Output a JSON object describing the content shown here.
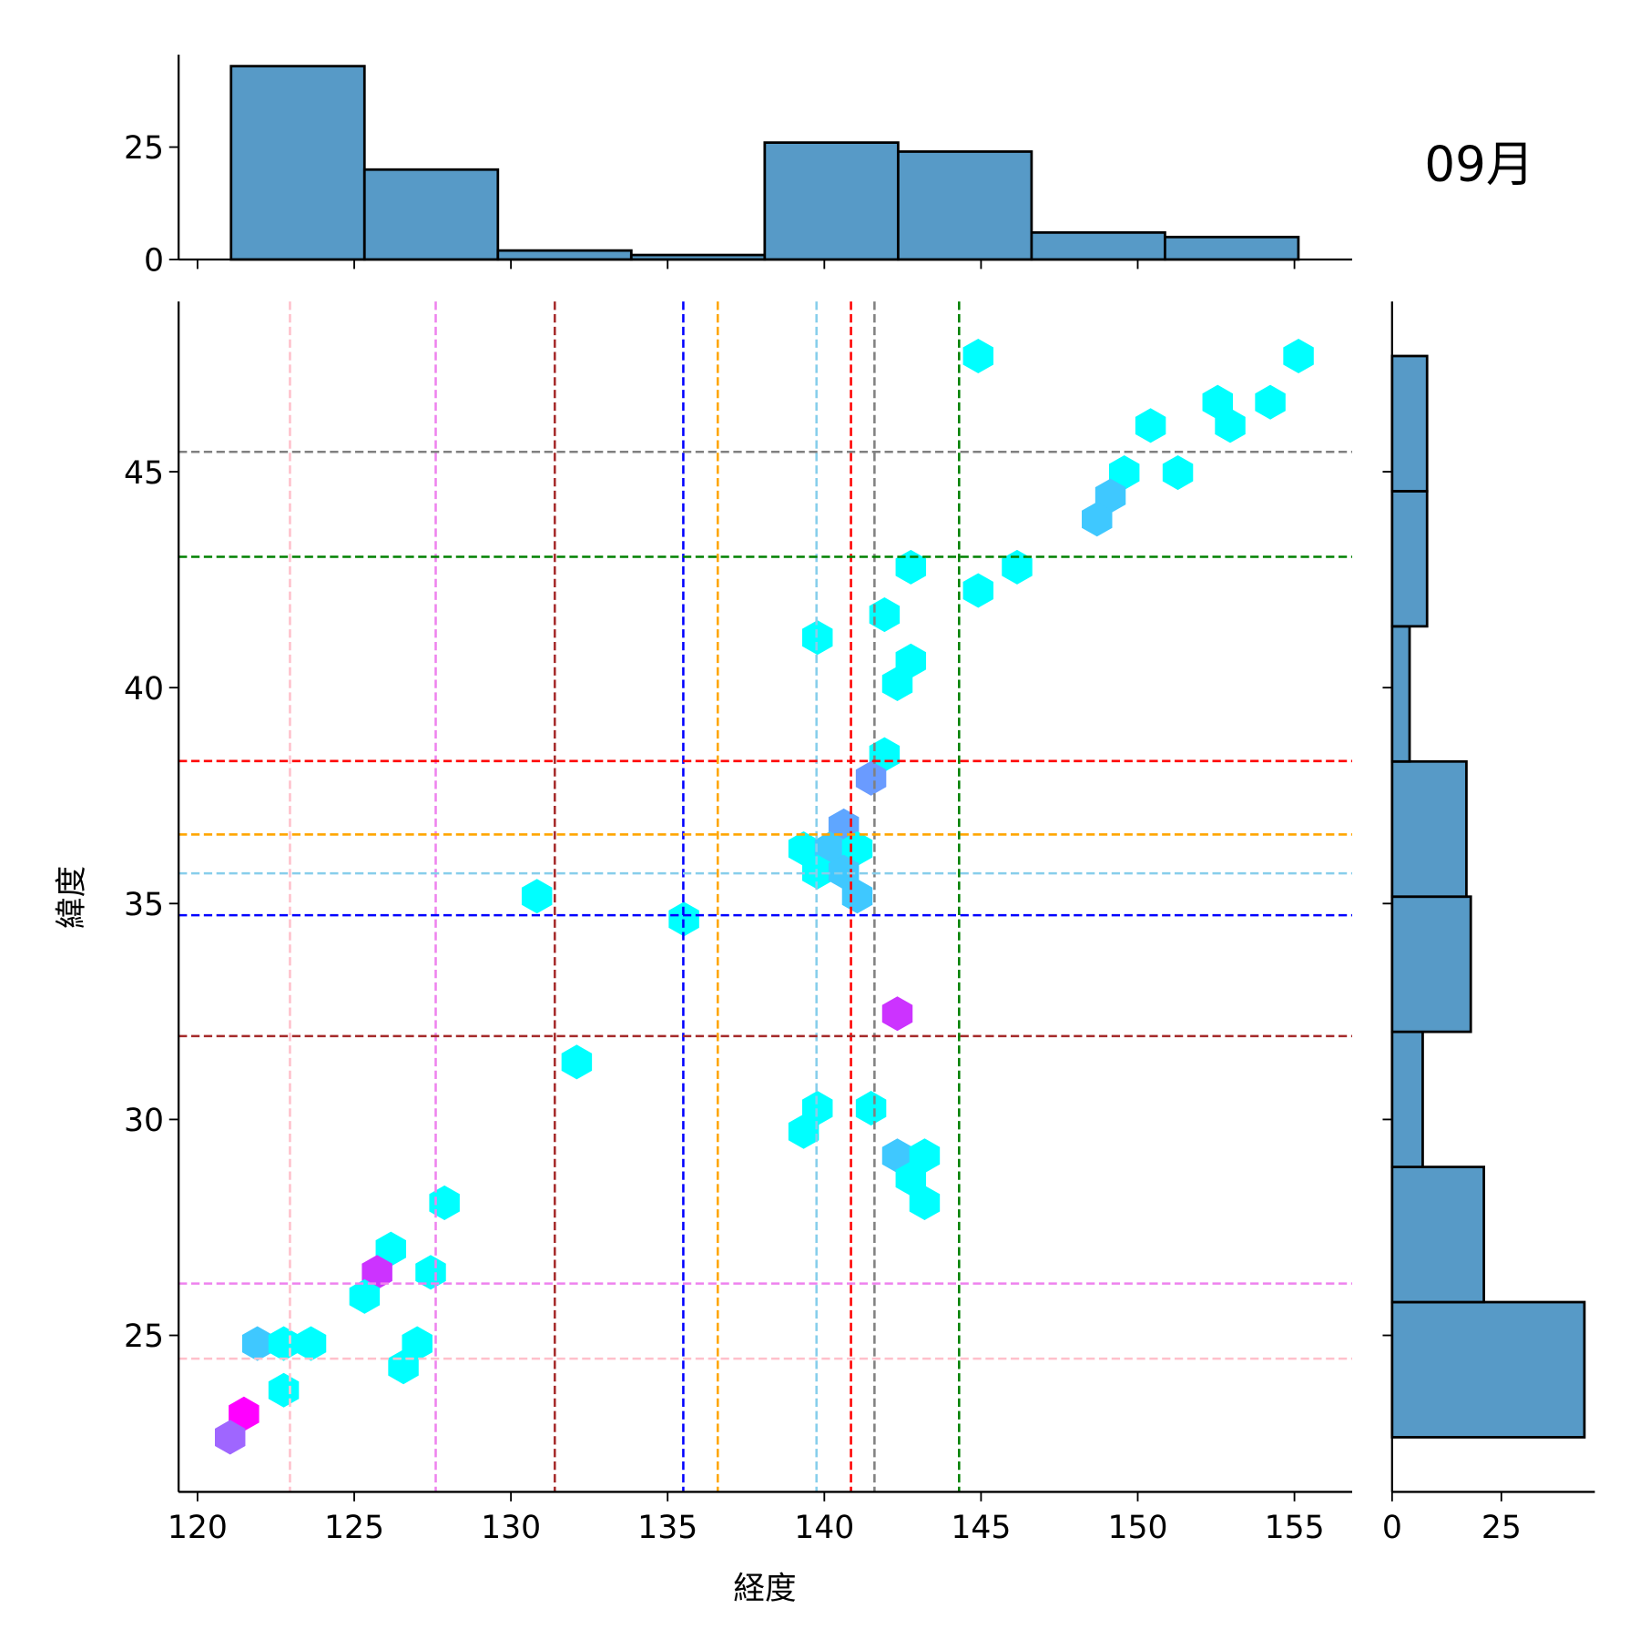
{
  "chart_data": {
    "type": "hexbin-jointplot",
    "title": "09月",
    "xlabel": "経度",
    "ylabel": "緯度",
    "xlim": [
      119.4,
      156.8
    ],
    "ylim": [
      21.5,
      49.0
    ],
    "xticks": [
      120,
      125,
      130,
      135,
      140,
      145,
      150,
      155
    ],
    "yticks": [
      25,
      30,
      35,
      40,
      45
    ],
    "top_hist": {
      "yticks": [
        0,
        25
      ],
      "ylim": [
        0,
        45
      ],
      "bin_start": 121.07,
      "bin_width": 4.257,
      "counts": [
        43,
        20,
        2,
        1,
        26,
        24,
        6,
        5
      ],
      "color": "#579ac7"
    },
    "right_hist": {
      "xticks": [
        0,
        25
      ],
      "xlim": [
        0,
        46
      ],
      "bin_start": 22.64,
      "bin_width": 3.13,
      "counts": [
        44,
        21,
        7,
        18,
        17,
        4,
        8,
        8
      ],
      "color": "#579ac7"
    },
    "vlines": [
      {
        "x": 122.95,
        "color": "pink"
      },
      {
        "x": 127.6,
        "color": "violet"
      },
      {
        "x": 131.4,
        "color": "brown"
      },
      {
        "x": 135.5,
        "color": "blue"
      },
      {
        "x": 136.6,
        "color": "orange"
      },
      {
        "x": 139.75,
        "color": "skyblue"
      },
      {
        "x": 140.85,
        "color": "red"
      },
      {
        "x": 141.6,
        "color": "gray"
      },
      {
        "x": 144.3,
        "color": "green"
      }
    ],
    "hlines": [
      {
        "y": 45.46,
        "color": "gray"
      },
      {
        "y": 43.03,
        "color": "green"
      },
      {
        "y": 38.3,
        "color": "red"
      },
      {
        "y": 36.6,
        "color": "orange"
      },
      {
        "y": 35.7,
        "color": "skyblue"
      },
      {
        "y": 34.73,
        "color": "blue"
      },
      {
        "y": 31.93,
        "color": "brown"
      },
      {
        "y": 26.2,
        "color": "violet"
      },
      {
        "y": 24.46,
        "color": "pink"
      }
    ],
    "hexes": [
      [
        144.91,
        47.68,
        "#00ffff"
      ],
      [
        155.13,
        47.68,
        "#00ffff"
      ],
      [
        152.55,
        46.61,
        "#00ffff"
      ],
      [
        154.23,
        46.61,
        "#00ffff"
      ],
      [
        152.95,
        46.07,
        "#00ffff"
      ],
      [
        150.41,
        46.07,
        "#00ffff"
      ],
      [
        149.57,
        44.98,
        "#00ffff"
      ],
      [
        151.28,
        44.98,
        "#00ffff"
      ],
      [
        149.13,
        44.44,
        "#3fc8ff"
      ],
      [
        148.7,
        43.9,
        "#3fc8ff"
      ],
      [
        142.76,
        42.79,
        "#00ffff"
      ],
      [
        146.15,
        42.79,
        "#00ffff"
      ],
      [
        144.91,
        42.25,
        "#00ffff"
      ],
      [
        141.92,
        41.69,
        "#00ffff"
      ],
      [
        139.78,
        41.16,
        "#00ffff"
      ],
      [
        142.76,
        40.62,
        "#00ffff"
      ],
      [
        142.33,
        40.09,
        "#00ffff"
      ],
      [
        141.92,
        38.45,
        "#00ffff"
      ],
      [
        141.49,
        37.9,
        "#6a9bff"
      ],
      [
        140.62,
        36.8,
        "#5fa6ff"
      ],
      [
        139.34,
        36.27,
        "#00ffff"
      ],
      [
        140.18,
        36.27,
        "#3fc8ff"
      ],
      [
        141.05,
        36.27,
        "#00ffff"
      ],
      [
        139.78,
        35.73,
        "#00ffff"
      ],
      [
        140.62,
        35.73,
        "#3fc8ff"
      ],
      [
        141.05,
        35.17,
        "#3fc8ff"
      ],
      [
        130.83,
        35.17,
        "#00ffff"
      ],
      [
        135.52,
        34.64,
        "#00ffff"
      ],
      [
        142.33,
        32.45,
        "#cc33ff"
      ],
      [
        132.1,
        31.33,
        "#00ffff"
      ],
      [
        139.78,
        30.26,
        "#00ffff"
      ],
      [
        141.49,
        30.26,
        "#00ffff"
      ],
      [
        139.34,
        29.72,
        "#00ffff"
      ],
      [
        142.33,
        29.16,
        "#3fc8ff"
      ],
      [
        143.2,
        29.16,
        "#00ffff"
      ],
      [
        142.76,
        28.63,
        "#00ffff"
      ],
      [
        143.2,
        28.07,
        "#00ffff"
      ],
      [
        127.88,
        28.07,
        "#00ffff"
      ],
      [
        126.17,
        27.0,
        "#00ffff"
      ],
      [
        125.73,
        26.46,
        "#cc33ff"
      ],
      [
        127.44,
        26.46,
        "#00ffff"
      ],
      [
        125.33,
        25.9,
        "#00ffff"
      ],
      [
        121.91,
        24.81,
        "#3fc8ff"
      ],
      [
        122.75,
        24.81,
        "#00ffff"
      ],
      [
        123.62,
        24.81,
        "#00ffff"
      ],
      [
        127.01,
        24.81,
        "#00ffff"
      ],
      [
        126.57,
        24.27,
        "#00ffff"
      ],
      [
        122.75,
        23.73,
        "#00ffff"
      ],
      [
        121.48,
        23.18,
        "#ff00ff"
      ],
      [
        121.04,
        22.64,
        "#9f66ff"
      ]
    ]
  }
}
